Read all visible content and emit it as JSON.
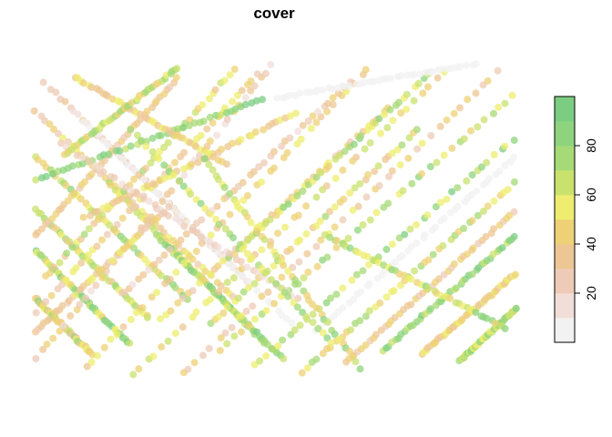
{
  "chart_data": {
    "type": "scatter",
    "title": "cover",
    "xlabel": "",
    "ylabel": "",
    "grid": false,
    "axes_visible": false,
    "color_scale": {
      "variable": "cover",
      "range": [
        0,
        100
      ],
      "breaks": [
        0,
        10,
        20,
        30,
        40,
        50,
        60,
        70,
        80,
        90,
        100
      ],
      "colors": [
        "#F2F2F2",
        "#F1DED9",
        "#EECBB6",
        "#EDC793",
        "#EED176",
        "#EEED6F",
        "#C9E26E",
        "#A6DA76",
        "#8ED47E",
        "#7BCD82"
      ],
      "ticks": [
        20,
        40,
        60,
        80
      ],
      "tick_labels": [
        "20",
        "40",
        "60",
        "80"
      ],
      "legend_position": "right"
    },
    "point_alpha": 0.75,
    "description_of_points": "Dense diagonal tracks of semi-transparent points, colored by cover value",
    "tracks": [
      {
        "p0": [
          0.02,
          0.07
        ],
        "p1": [
          0.45,
          0.71
        ],
        "cover_range": [
          10,
          35
        ]
      },
      {
        "p0": [
          0.0,
          0.16
        ],
        "p1": [
          0.42,
          0.76
        ],
        "cover_range": [
          20,
          60
        ]
      },
      {
        "p0": [
          0.0,
          0.3
        ],
        "p1": [
          0.32,
          0.76
        ],
        "cover_range": [
          40,
          90
        ]
      },
      {
        "p0": [
          0.0,
          0.47
        ],
        "p1": [
          0.24,
          0.82
        ],
        "cover_range": [
          30,
          80
        ]
      },
      {
        "p0": [
          0.0,
          0.6
        ],
        "p1": [
          0.2,
          0.9
        ],
        "cover_range": [
          45,
          95
        ]
      },
      {
        "p0": [
          0.0,
          0.75
        ],
        "p1": [
          0.12,
          0.93
        ],
        "cover_range": [
          30,
          90
        ]
      },
      {
        "p0": [
          0.1,
          0.19
        ],
        "p1": [
          0.55,
          0.86
        ],
        "cover_range": [
          0,
          10
        ]
      },
      {
        "p0": [
          0.15,
          0.38
        ],
        "p1": [
          0.48,
          0.9
        ],
        "cover_range": [
          40,
          75
        ]
      },
      {
        "p0": [
          0.25,
          0.55
        ],
        "p1": [
          0.52,
          0.95
        ],
        "cover_range": [
          55,
          95
        ]
      },
      {
        "p0": [
          0.0,
          0.95
        ],
        "p1": [
          0.5,
          0.0
        ],
        "cover_range": [
          15,
          50
        ]
      },
      {
        "p0": [
          0.0,
          0.8
        ],
        "p1": [
          0.47,
          0.03
        ],
        "cover_range": [
          20,
          60
        ]
      },
      {
        "p0": [
          0.02,
          0.69
        ],
        "p1": [
          0.42,
          0.02
        ],
        "cover_range": [
          35,
          75
        ]
      },
      {
        "p0": [
          0.0,
          0.56
        ],
        "p1": [
          0.3,
          0.05
        ],
        "cover_range": [
          20,
          50
        ]
      },
      {
        "p0": [
          0.1,
          0.98
        ],
        "p1": [
          0.7,
          0.01
        ],
        "cover_range": [
          30,
          60
        ]
      },
      {
        "p0": [
          0.2,
          1.0
        ],
        "p1": [
          0.86,
          0.02
        ],
        "cover_range": [
          30,
          70
        ]
      },
      {
        "p0": [
          0.3,
          1.0
        ],
        "p1": [
          0.97,
          0.02
        ],
        "cover_range": [
          20,
          55
        ]
      },
      {
        "p0": [
          0.38,
          0.92
        ],
        "p1": [
          1.0,
          0.1
        ],
        "cover_range": [
          40,
          85
        ]
      },
      {
        "p0": [
          0.45,
          0.97
        ],
        "p1": [
          1.0,
          0.24
        ],
        "cover_range": [
          50,
          95
        ]
      },
      {
        "p0": [
          0.55,
          0.99
        ],
        "p1": [
          1.0,
          0.38
        ],
        "cover_range": [
          40,
          80
        ]
      },
      {
        "p0": [
          0.64,
          0.96
        ],
        "p1": [
          1.0,
          0.47
        ],
        "cover_range": [
          20,
          50
        ]
      },
      {
        "p0": [
          0.72,
          0.92
        ],
        "p1": [
          1.0,
          0.55
        ],
        "cover_range": [
          55,
          95
        ]
      },
      {
        "p0": [
          0.8,
          0.93
        ],
        "p1": [
          1.0,
          0.67
        ],
        "cover_range": [
          30,
          60
        ]
      },
      {
        "p0": [
          0.88,
          0.95
        ],
        "p1": [
          1.0,
          0.78
        ],
        "cover_range": [
          50,
          90
        ]
      },
      {
        "p0": [
          0.58,
          0.86
        ],
        "p1": [
          1.0,
          0.3
        ],
        "cover_range": [
          0,
          10
        ]
      },
      {
        "p0": [
          0.36,
          0.84
        ],
        "p1": [
          0.8,
          0.21
        ],
        "cover_range": [
          30,
          75
        ]
      },
      {
        "p0": [
          0.26,
          0.82
        ],
        "p1": [
          0.74,
          0.14
        ],
        "cover_range": [
          25,
          60
        ]
      },
      {
        "p0": [
          0.18,
          0.74
        ],
        "p1": [
          0.66,
          0.06
        ],
        "cover_range": [
          15,
          45
        ]
      },
      {
        "p0": [
          0.4,
          0.63
        ],
        "p1": [
          0.82,
          0.04
        ],
        "cover_range": [
          45,
          90
        ]
      },
      {
        "p0": [
          0.1,
          0.5
        ],
        "p1": [
          0.55,
          0.16
        ],
        "cover_range": [
          30,
          60
        ]
      },
      {
        "p0": [
          0.0,
          0.38
        ],
        "p1": [
          0.48,
          0.12
        ],
        "cover_range": [
          60,
          95
        ]
      },
      {
        "p0": [
          0.05,
          0.26
        ],
        "p1": [
          0.55,
          0.76
        ],
        "cover_range": [
          10,
          30
        ]
      },
      {
        "p0": [
          0.2,
          0.22
        ],
        "p1": [
          0.62,
          0.9
        ],
        "cover_range": [
          50,
          90
        ]
      },
      {
        "p0": [
          0.08,
          0.05
        ],
        "p1": [
          0.4,
          0.33
        ],
        "cover_range": [
          30,
          60
        ]
      },
      {
        "p0": [
          0.35,
          0.31
        ],
        "p1": [
          0.68,
          0.98
        ],
        "cover_range": [
          40,
          90
        ]
      },
      {
        "p0": [
          0.5,
          0.12
        ],
        "p1": [
          0.92,
          0.01
        ],
        "cover_range": [
          0,
          10
        ]
      },
      {
        "p0": [
          0.06,
          0.3
        ],
        "p1": [
          0.3,
          0.02
        ],
        "cover_range": [
          40,
          80
        ]
      },
      {
        "p0": [
          0.0,
          0.86
        ],
        "p1": [
          0.28,
          0.46
        ],
        "cover_range": [
          20,
          55
        ]
      },
      {
        "p0": [
          0.6,
          0.55
        ],
        "p1": [
          0.98,
          0.85
        ],
        "cover_range": [
          40,
          90
        ]
      }
    ]
  }
}
